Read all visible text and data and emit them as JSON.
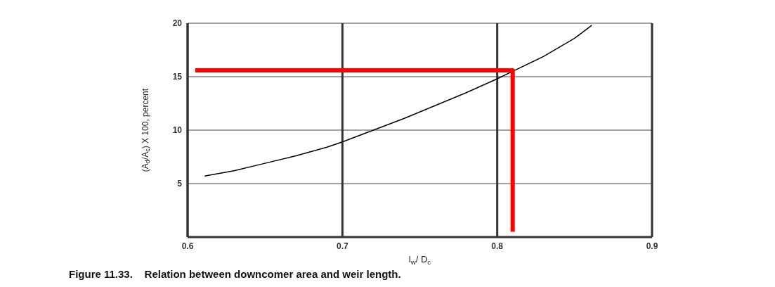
{
  "chart_data": {
    "type": "line",
    "xlabel": "l$_{w}$/ D$_{c}$",
    "ylabel": "(A$_{d}$/A$_{c}$) X 100, percent",
    "annotations": [
      "Figure 11.33.    Relation between downcomer area and weir length."
    ],
    "xlim": [
      0.6,
      0.9
    ],
    "xticks": [
      0.6,
      0.7,
      0.8,
      0.9
    ],
    "ylim": [
      0,
      20
    ],
    "yticks": [
      5,
      10,
      15,
      20
    ],
    "grid": true,
    "marker": "none",
    "line_style": "solid",
    "series": [
      {
        "color": "#000000",
        "x": [
          0.611,
          0.63,
          0.65,
          0.67,
          0.69,
          0.7,
          0.72,
          0.74,
          0.76,
          0.78,
          0.8,
          0.81,
          0.83,
          0.85,
          0.861
        ],
        "values": [
          5.7,
          6.2,
          6.9,
          7.6,
          8.4,
          8.9,
          10.0,
          11.1,
          12.3,
          13.5,
          14.8,
          15.5,
          16.9,
          18.6,
          19.8
        ]
      },
      {
        "color": "#ff0000",
        "x": [
          0.605,
          0.81,
          0.81
        ],
        "values": [
          15.6,
          15.6,
          0.5
        ]
      }
    ]
  }
}
